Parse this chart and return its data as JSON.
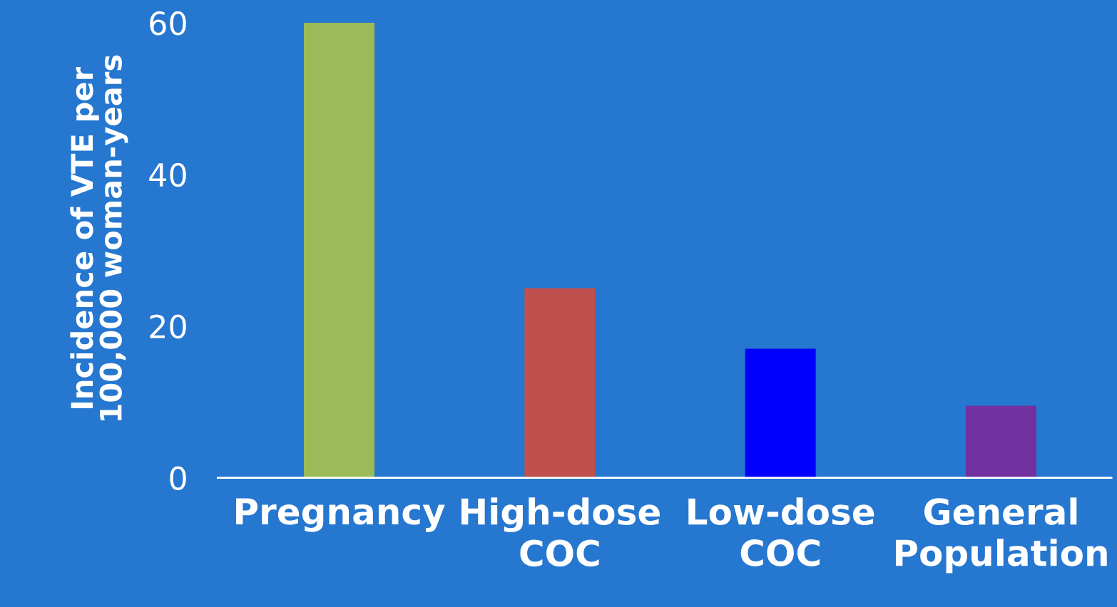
{
  "chart_data": {
    "type": "bar",
    "ylabel": "Incidence of VTE per\n100,000 woman-years",
    "categories": [
      "Pregnancy",
      "High-dose\nCOC",
      "Low-dose\nCOC",
      "General\nPopulation"
    ],
    "values": [
      60,
      25,
      17,
      9.5
    ],
    "colors": [
      "#9bbb59",
      "#c0504d",
      "#0000ff",
      "#7030a0"
    ],
    "ylim": [
      0,
      63
    ],
    "yticks": [
      0,
      20,
      40,
      60
    ],
    "grid": false
  }
}
